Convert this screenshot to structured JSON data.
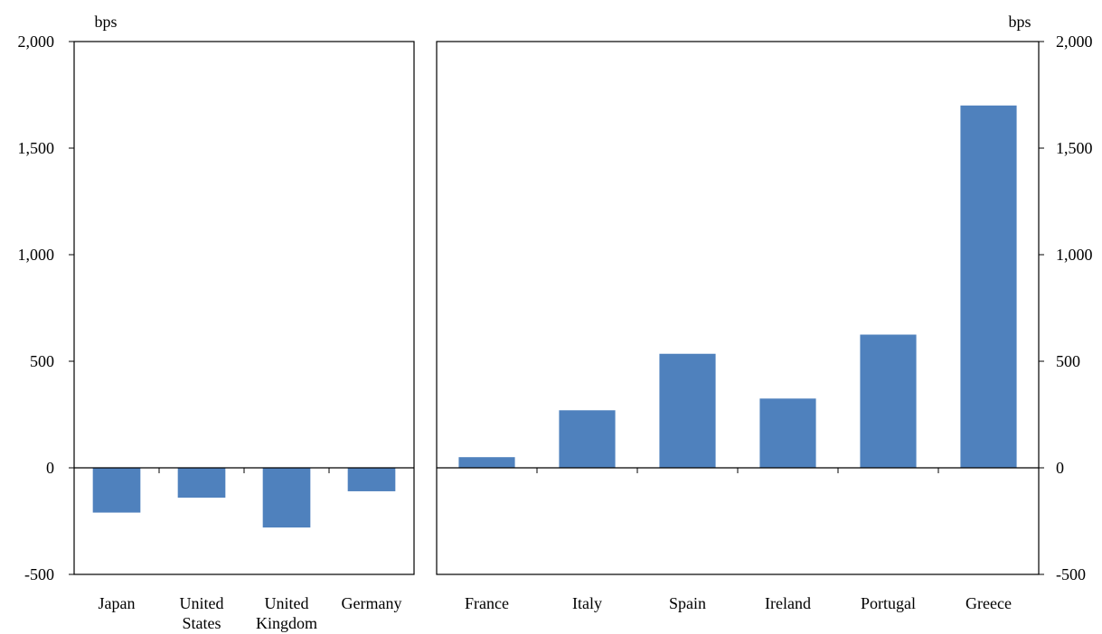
{
  "colors": {
    "bar": "#4F81BD",
    "axis": "#000000",
    "background": "#FFFFFF"
  },
  "chart_data": [
    {
      "type": "bar",
      "ylabel": "bps",
      "ylim": [
        -500,
        2000
      ],
      "yticks": [
        -500,
        0,
        500,
        1000,
        1500,
        2000
      ],
      "ytick_labels": [
        "-500",
        "0",
        "500",
        "1,000",
        "1,500",
        "2,000"
      ],
      "y_axis_side": "left",
      "grid": false,
      "categories": [
        "Japan",
        "United States",
        "United Kingdom",
        "Germany"
      ],
      "category_lines": [
        [
          "Japan"
        ],
        [
          "United",
          "States"
        ],
        [
          "United",
          "Kingdom"
        ],
        [
          "Germany"
        ]
      ],
      "values": [
        -210,
        -140,
        -280,
        -110
      ]
    },
    {
      "type": "bar",
      "ylabel": "bps",
      "ylim": [
        -500,
        2000
      ],
      "yticks": [
        -500,
        0,
        500,
        1000,
        1500,
        2000
      ],
      "ytick_labels": [
        "-500",
        "0",
        "500",
        "1,000",
        "1,500",
        "2,000"
      ],
      "y_axis_side": "right",
      "grid": false,
      "categories": [
        "France",
        "Italy",
        "Spain",
        "Ireland",
        "Portugal",
        "Greece"
      ],
      "category_lines": [
        [
          "France"
        ],
        [
          "Italy"
        ],
        [
          "Spain"
        ],
        [
          "Ireland"
        ],
        [
          "Portugal"
        ],
        [
          "Greece"
        ]
      ],
      "values": [
        50,
        270,
        535,
        325,
        625,
        1700
      ]
    }
  ]
}
